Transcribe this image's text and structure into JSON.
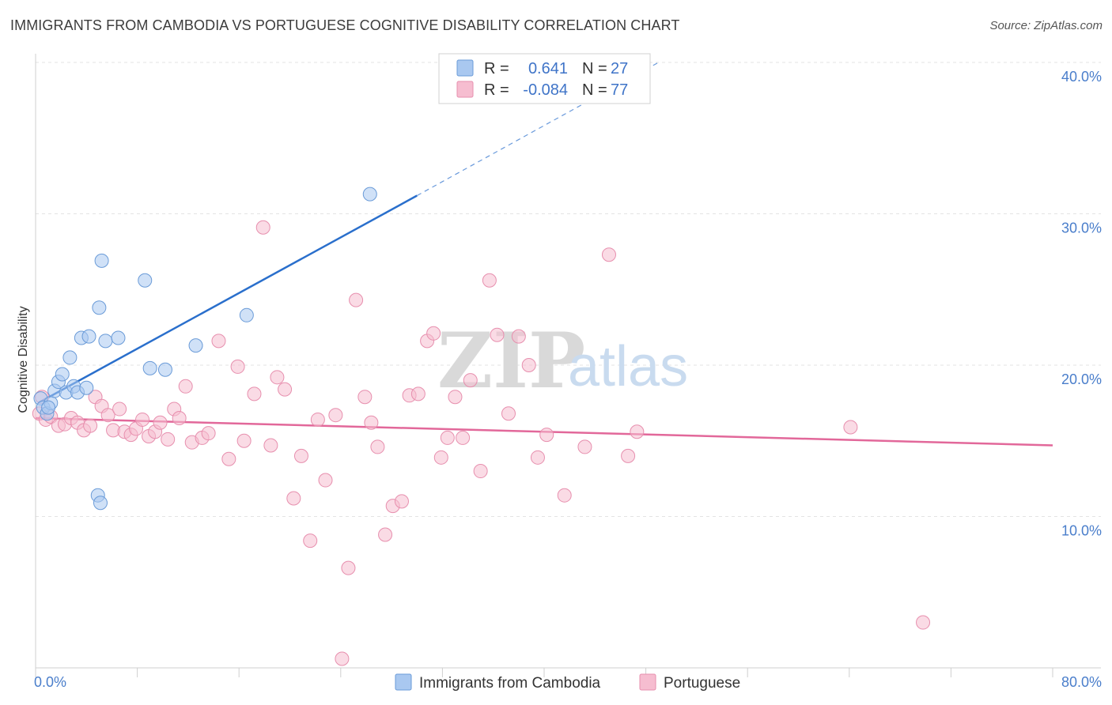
{
  "header": {
    "title": "IMMIGRANTS FROM CAMBODIA VS PORTUGUESE COGNITIVE DISABILITY CORRELATION CHART",
    "source": "Source: ZipAtlas.com"
  },
  "watermark": {
    "zip": "ZIP",
    "atlas": "atlas"
  },
  "legend": {
    "rows": [
      {
        "r_label": "R =",
        "r_value": "0.641",
        "n_label": "N =",
        "n_value": "27"
      },
      {
        "r_label": "R =",
        "r_value": "-0.084",
        "n_label": "N =",
        "n_value": "77"
      }
    ]
  },
  "colors": {
    "blue_fill": "#a9c8f0",
    "blue_stroke": "#6a9bd8",
    "blue_line": "#2a6fcc",
    "pink_fill": "#f6bdd0",
    "pink_stroke": "#e78fae",
    "pink_line": "#e2689a",
    "tick_text": "#4a7ecb"
  },
  "chart_data": {
    "type": "scatter",
    "title": "IMMIGRANTS FROM CAMBODIA VS PORTUGUESE COGNITIVE DISABILITY CORRELATION CHART",
    "ylabel": "Cognitive Disability",
    "xlim": [
      0,
      80
    ],
    "ylim": [
      0,
      40
    ],
    "x_tick_labels": [
      "0.0%",
      "80.0%"
    ],
    "y_ticks": [
      {
        "value": 10,
        "label": "10.0%"
      },
      {
        "value": 20,
        "label": "20.0%"
      },
      {
        "value": 30,
        "label": "30.0%"
      },
      {
        "value": 40,
        "label": "40.0%"
      }
    ],
    "grid": true,
    "legend_position": "top-center",
    "series": [
      {
        "name": "Immigrants from Cambodia",
        "color": "#a9c8f0",
        "r": 0.641,
        "n": 27,
        "trend": {
          "x": [
            0.2,
            30.0
          ],
          "y": [
            17.5,
            31.2
          ],
          "dashed_to": [
            49.0,
            40.0
          ]
        },
        "points": [
          [
            0.4,
            17.8
          ],
          [
            0.6,
            17.2
          ],
          [
            0.9,
            16.8
          ],
          [
            1.2,
            17.5
          ],
          [
            1.5,
            18.3
          ],
          [
            1.8,
            18.9
          ],
          [
            2.1,
            19.4
          ],
          [
            2.4,
            18.2
          ],
          [
            2.7,
            20.5
          ],
          [
            3.0,
            18.6
          ],
          [
            3.3,
            18.2
          ],
          [
            3.6,
            21.8
          ],
          [
            4.0,
            18.5
          ],
          [
            4.2,
            21.9
          ],
          [
            5.0,
            23.8
          ],
          [
            5.2,
            26.9
          ],
          [
            5.5,
            21.6
          ],
          [
            6.5,
            21.8
          ],
          [
            8.6,
            25.6
          ],
          [
            9.0,
            19.8
          ],
          [
            10.2,
            19.7
          ],
          [
            12.6,
            21.3
          ],
          [
            16.6,
            23.3
          ],
          [
            26.3,
            31.3
          ],
          [
            4.9,
            11.4
          ],
          [
            5.1,
            10.9
          ],
          [
            1.0,
            17.2
          ]
        ]
      },
      {
        "name": "Portuguese",
        "color": "#f6bdd0",
        "r": -0.084,
        "n": 77,
        "trend": {
          "x": [
            0,
            80
          ],
          "y": [
            16.5,
            14.7
          ]
        },
        "points": [
          [
            0.3,
            16.8
          ],
          [
            0.8,
            16.4
          ],
          [
            1.2,
            16.6
          ],
          [
            1.8,
            16.0
          ],
          [
            2.3,
            16.1
          ],
          [
            2.8,
            16.5
          ],
          [
            3.3,
            16.2
          ],
          [
            3.8,
            15.7
          ],
          [
            4.3,
            16.0
          ],
          [
            4.7,
            17.9
          ],
          [
            5.2,
            17.3
          ],
          [
            5.7,
            16.7
          ],
          [
            6.1,
            15.7
          ],
          [
            6.6,
            17.1
          ],
          [
            7.0,
            15.6
          ],
          [
            7.5,
            15.4
          ],
          [
            7.9,
            15.8
          ],
          [
            8.4,
            16.4
          ],
          [
            8.9,
            15.3
          ],
          [
            9.4,
            15.6
          ],
          [
            9.8,
            16.2
          ],
          [
            10.4,
            15.1
          ],
          [
            10.9,
            17.1
          ],
          [
            11.3,
            16.5
          ],
          [
            11.8,
            18.6
          ],
          [
            12.3,
            14.9
          ],
          [
            13.1,
            15.2
          ],
          [
            13.6,
            15.5
          ],
          [
            14.4,
            21.6
          ],
          [
            15.2,
            13.8
          ],
          [
            15.9,
            19.9
          ],
          [
            16.4,
            15.0
          ],
          [
            17.2,
            18.1
          ],
          [
            17.9,
            29.1
          ],
          [
            18.5,
            14.7
          ],
          [
            19.0,
            19.2
          ],
          [
            19.6,
            18.4
          ],
          [
            20.3,
            11.2
          ],
          [
            20.9,
            14.0
          ],
          [
            21.6,
            8.4
          ],
          [
            22.2,
            16.4
          ],
          [
            22.8,
            12.4
          ],
          [
            23.6,
            16.7
          ],
          [
            24.1,
            0.6
          ],
          [
            24.6,
            6.6
          ],
          [
            25.2,
            24.3
          ],
          [
            25.9,
            17.9
          ],
          [
            26.4,
            16.2
          ],
          [
            26.9,
            14.6
          ],
          [
            27.5,
            8.8
          ],
          [
            28.1,
            10.7
          ],
          [
            28.8,
            11.0
          ],
          [
            29.4,
            18.0
          ],
          [
            30.1,
            18.1
          ],
          [
            30.8,
            21.6
          ],
          [
            31.3,
            22.1
          ],
          [
            31.9,
            13.9
          ],
          [
            32.4,
            15.2
          ],
          [
            33.0,
            17.9
          ],
          [
            33.6,
            15.2
          ],
          [
            34.2,
            19.0
          ],
          [
            35.0,
            13.0
          ],
          [
            35.7,
            25.6
          ],
          [
            36.3,
            22.0
          ],
          [
            37.2,
            16.8
          ],
          [
            38.0,
            21.9
          ],
          [
            38.8,
            20.0
          ],
          [
            39.5,
            13.9
          ],
          [
            40.2,
            15.4
          ],
          [
            41.6,
            11.4
          ],
          [
            43.2,
            14.6
          ],
          [
            45.1,
            27.3
          ],
          [
            46.6,
            14.0
          ],
          [
            47.3,
            15.6
          ],
          [
            64.1,
            15.9
          ],
          [
            69.8,
            3.0
          ],
          [
            0.5,
            17.9
          ]
        ]
      }
    ]
  },
  "bottom_legend": [
    {
      "label": "Immigrants from Cambodia"
    },
    {
      "label": "Portuguese"
    }
  ]
}
